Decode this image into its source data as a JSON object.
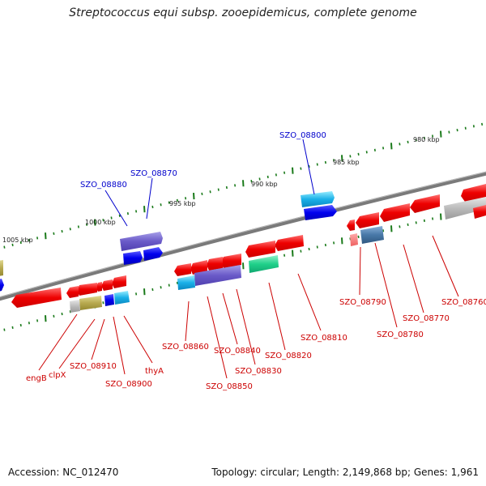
{
  "title": "Streptococcus equi subsp. zooepidemicus, complete genome",
  "footer": {
    "accession": "Accession: NC_012470",
    "summary": "Topology: circular; Length: 2,149,868 bp; Genes: 1,961"
  },
  "scale_labels": [
    "980 kbp",
    "985 kbp",
    "990 kbp",
    "995 kbp",
    "1000 kbp",
    "1005 kbp"
  ],
  "gene_labels_forward": [
    "SZO_08800",
    "SZO_08870",
    "SZO_08880"
  ],
  "gene_labels_reverse": [
    "SZO_08790",
    "SZO_08760",
    "SZO_08770",
    "SZO_08780",
    "SZO_08810",
    "SZO_08860",
    "SZO_08840",
    "SZO_08820",
    "SZO_08830",
    "SZO_08850",
    "engB",
    "clpX",
    "SZO_08910",
    "SZO_08900",
    "thyA"
  ],
  "colors": {
    "forward_label": "#0000cc",
    "reverse_label": "#cc0000",
    "backbone": "#7a7a7a",
    "tick": "#1a7a1a"
  }
}
